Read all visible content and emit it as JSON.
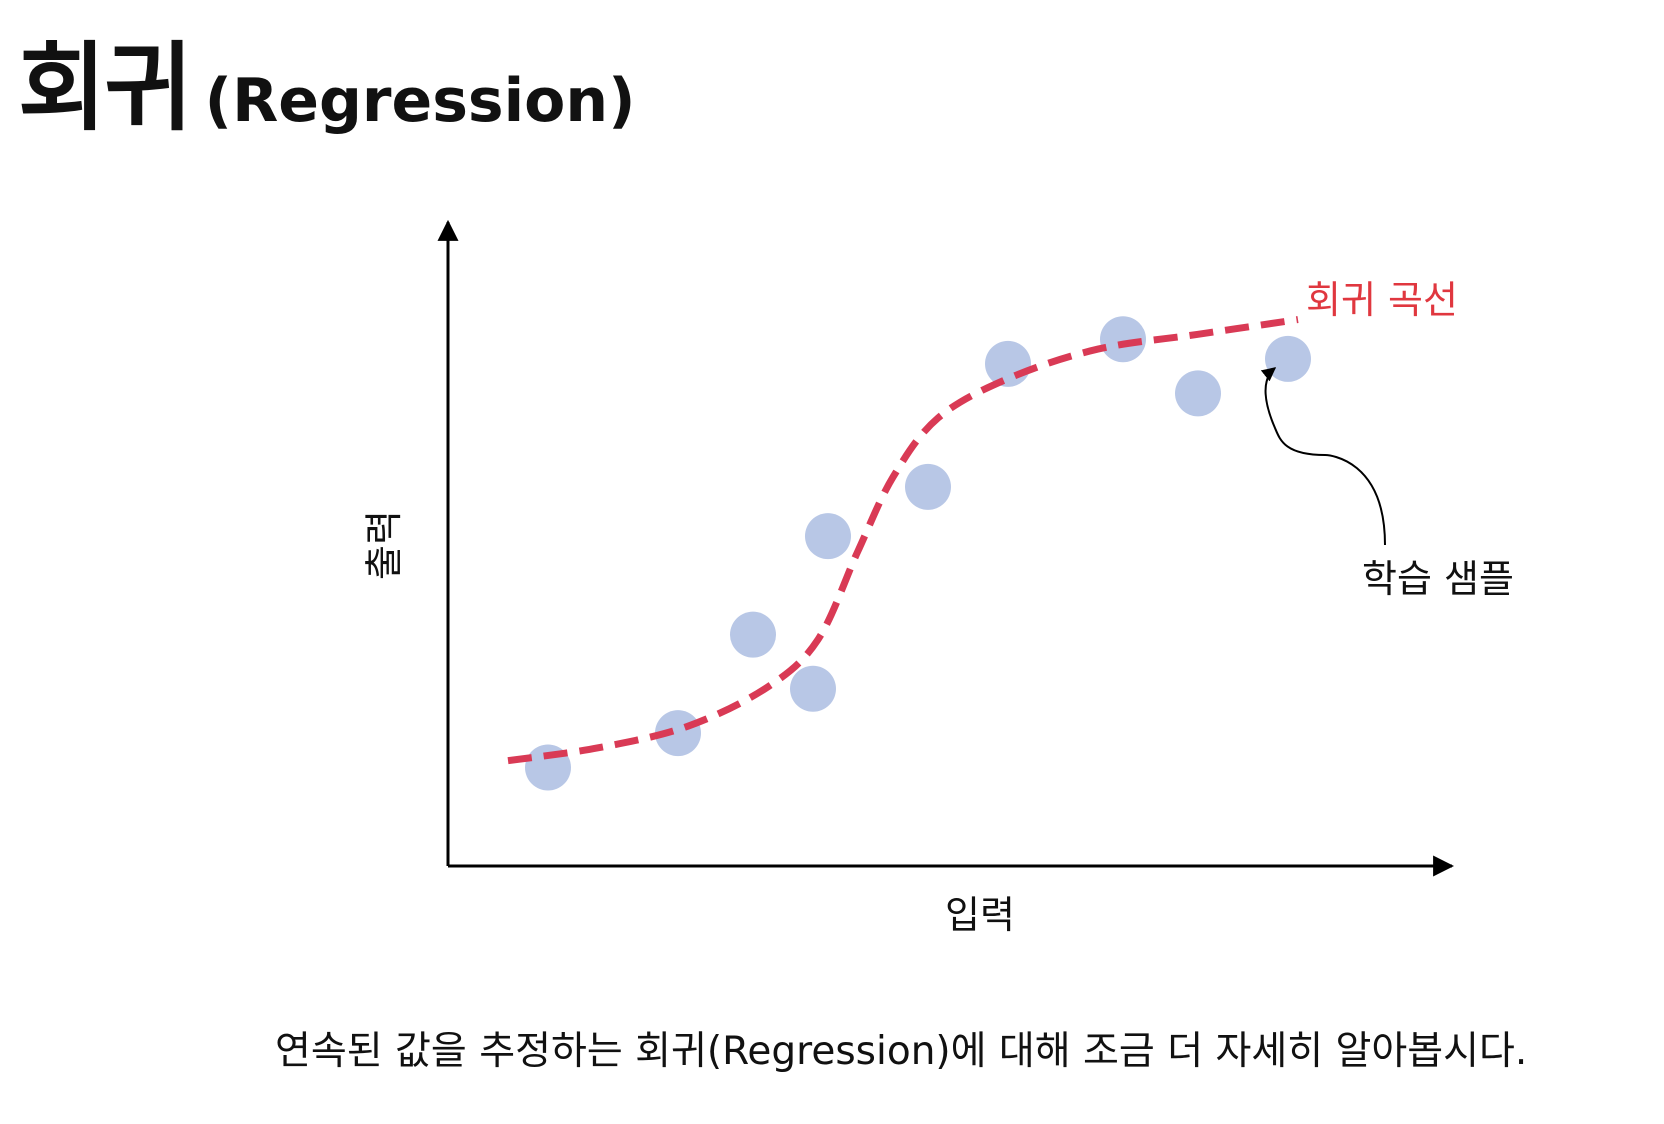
{
  "title": {
    "main": "회귀",
    "sub": "(Regression)"
  },
  "axes": {
    "x_label": "입력",
    "y_label": "출력"
  },
  "annotations": {
    "curve_label": "회귀 곡선",
    "sample_label": "학습 샘플"
  },
  "caption": "연속된 값을 추정하는 회귀(Regression)에 대해 조금 더 자세히 알아봅시다.",
  "colors": {
    "curve": "#d93a55",
    "points": "#b8c7e6",
    "curve_label": "#e0373f",
    "axis": "#000000"
  },
  "chart_data": {
    "type": "scatter",
    "xlabel": "입력",
    "ylabel": "출력",
    "points": [
      {
        "x": 1.0,
        "y": 1.0
      },
      {
        "x": 2.3,
        "y": 1.35
      },
      {
        "x": 3.05,
        "y": 2.35
      },
      {
        "x": 3.65,
        "y": 1.8
      },
      {
        "x": 3.8,
        "y": 3.35
      },
      {
        "x": 4.8,
        "y": 3.85
      },
      {
        "x": 5.6,
        "y": 5.1
      },
      {
        "x": 6.75,
        "y": 5.35
      },
      {
        "x": 7.5,
        "y": 4.8
      },
      {
        "x": 8.4,
        "y": 5.15
      }
    ],
    "curve": [
      {
        "x": 0.6,
        "y": 1.07
      },
      {
        "x": 1.5,
        "y": 1.2
      },
      {
        "x": 2.4,
        "y": 1.42
      },
      {
        "x": 3.2,
        "y": 1.82
      },
      {
        "x": 3.7,
        "y": 2.3
      },
      {
        "x": 4.1,
        "y": 3.2
      },
      {
        "x": 4.45,
        "y": 3.95
      },
      {
        "x": 4.9,
        "y": 4.55
      },
      {
        "x": 5.6,
        "y": 4.95
      },
      {
        "x": 6.5,
        "y": 5.25
      },
      {
        "x": 7.5,
        "y": 5.4
      },
      {
        "x": 8.5,
        "y": 5.55
      }
    ],
    "xlim": [
      0,
      10
    ],
    "ylim": [
      0,
      6.5
    ]
  }
}
